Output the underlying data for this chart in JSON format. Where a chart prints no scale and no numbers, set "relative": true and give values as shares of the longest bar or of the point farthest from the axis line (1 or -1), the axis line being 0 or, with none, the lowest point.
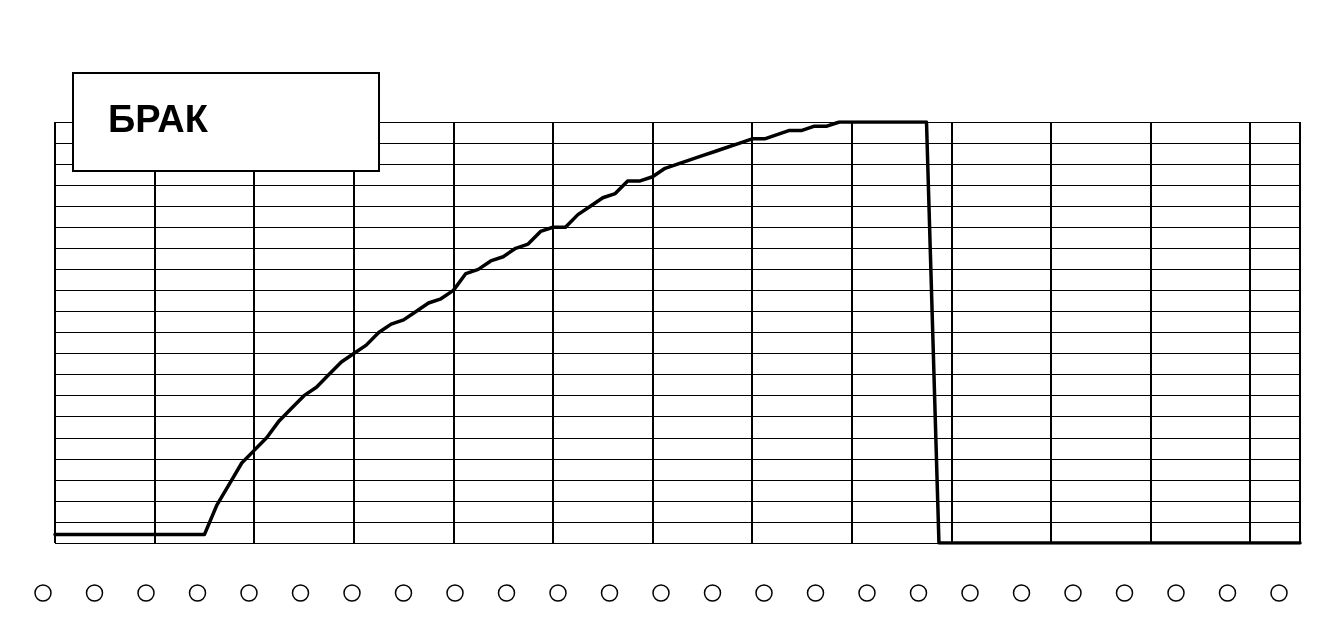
{
  "chart_data": {
    "type": "line",
    "relative": true,
    "grid": true,
    "marker": "none",
    "line_style": "solid",
    "annotations": [
      "БРАК"
    ],
    "categories": [
      null,
      null,
      null,
      null,
      null,
      null,
      null,
      null,
      null,
      null,
      null,
      null,
      null,
      null,
      null,
      null,
      null,
      null,
      null,
      null,
      null,
      null,
      null,
      null,
      null,
      null,
      null,
      null,
      null,
      null,
      null,
      null,
      null,
      null,
      null,
      null,
      null,
      null,
      null,
      null,
      null,
      null,
      null,
      null,
      null,
      null,
      null,
      null,
      null,
      null,
      null,
      null,
      null,
      null,
      null,
      null,
      null,
      null,
      null,
      null,
      null,
      null,
      null,
      null,
      null,
      null,
      null,
      null,
      null,
      null,
      null,
      null,
      null,
      null,
      null,
      null,
      null,
      null,
      null,
      null,
      null,
      null,
      null,
      null,
      null,
      null,
      null,
      null,
      null,
      null,
      null,
      null,
      null,
      null,
      null,
      null,
      null,
      null,
      null,
      null,
      null
    ],
    "series": [
      {
        "color": "#000000",
        "values": [
          0.02,
          0.02,
          0.02,
          0.02,
          0.02,
          0.02,
          0.02,
          0.02,
          0.02,
          0.02,
          0.02,
          0.02,
          0.02,
          0.09,
          0.14,
          0.19,
          0.22,
          0.25,
          0.29,
          0.32,
          0.35,
          0.37,
          0.4,
          0.43,
          0.45,
          0.47,
          0.5,
          0.52,
          0.53,
          0.55,
          0.57,
          0.58,
          0.6,
          0.64,
          0.65,
          0.67,
          0.68,
          0.7,
          0.71,
          0.74,
          0.75,
          0.75,
          0.78,
          0.8,
          0.82,
          0.83,
          0.86,
          0.86,
          0.87,
          0.89,
          0.9,
          0.91,
          0.92,
          0.93,
          0.94,
          0.95,
          0.96,
          0.96,
          0.97,
          0.98,
          0.98,
          0.99,
          0.99,
          1,
          1,
          1,
          1,
          1,
          1,
          1,
          1,
          0,
          0,
          0,
          0,
          0,
          0,
          0,
          0,
          0,
          0,
          0,
          0,
          0,
          0,
          0,
          0,
          0,
          0,
          0,
          0,
          0,
          0,
          0,
          0,
          0,
          0,
          0,
          0,
          0,
          0
        ]
      }
    ]
  }
}
